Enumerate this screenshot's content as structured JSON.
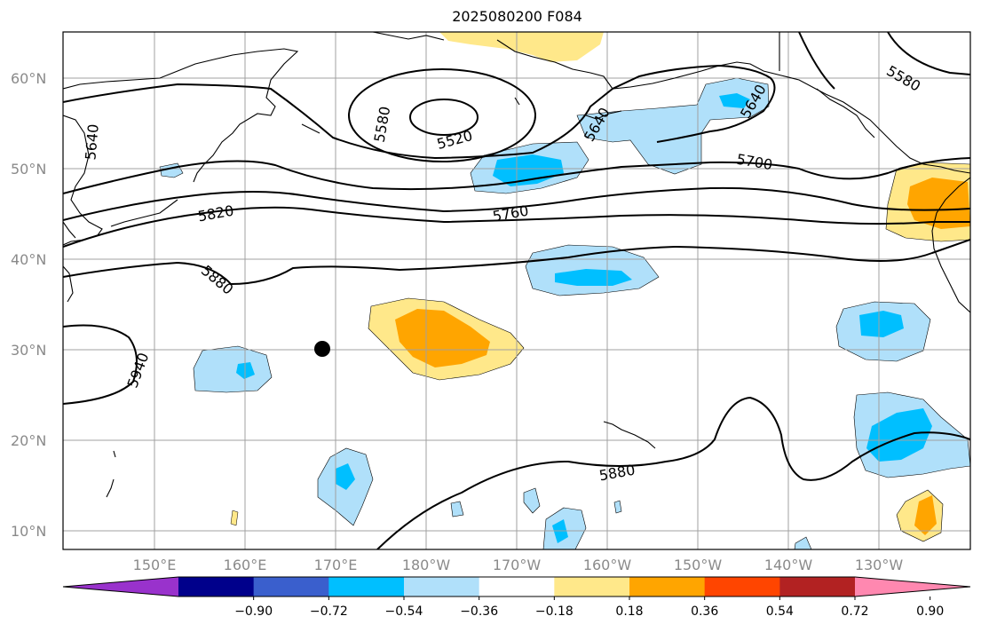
{
  "title": "2025080200 F084",
  "map": {
    "lat_ticks": [
      "60°N",
      "50°N",
      "40°N",
      "30°N",
      "20°N",
      "10°N"
    ],
    "lon_ticks": [
      "150°E",
      "160°E",
      "170°E",
      "180°W",
      "170°W",
      "160°W",
      "150°W",
      "140°W",
      "130°W"
    ],
    "contour_labels": [
      "5520",
      "5580",
      "5580",
      "5640",
      "5640",
      "5640",
      "5700",
      "5760",
      "5820",
      "5880",
      "5880",
      "5940"
    ],
    "marker": {
      "lat": 30,
      "lon": 172
    }
  },
  "colorbar": {
    "ticks": [
      "−0.90",
      "−0.72",
      "−0.54",
      "−0.36",
      "−0.18",
      "0.18",
      "0.36",
      "0.54",
      "0.72",
      "0.90"
    ],
    "colors": [
      "#9932cc",
      "#00008b",
      "#3a5fcd",
      "#00bfff",
      "#b0e0fa",
      "#ffffff",
      "#ffe88a",
      "#ffa500",
      "#ff4500",
      "#b22222",
      "#ff88b0"
    ]
  }
}
